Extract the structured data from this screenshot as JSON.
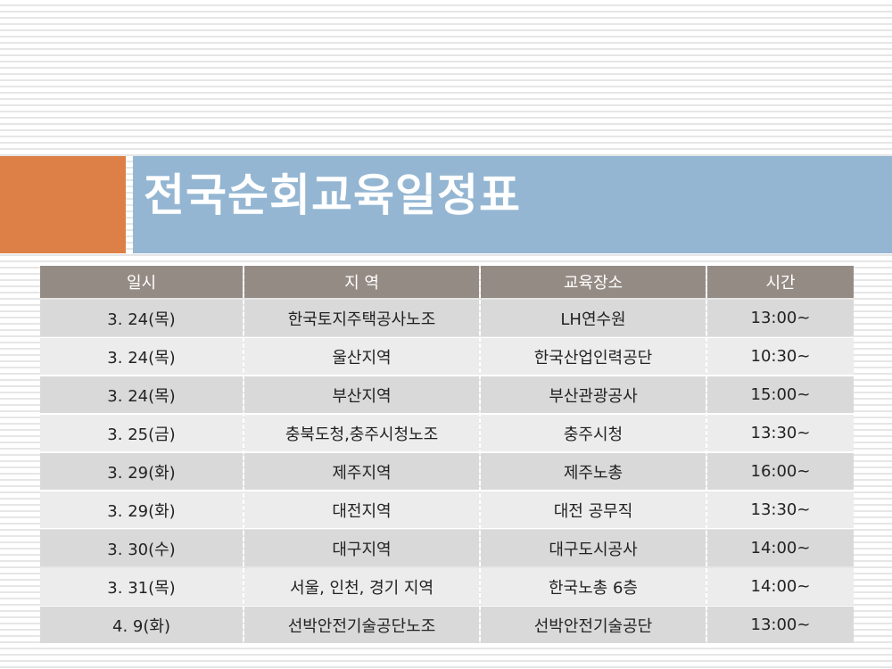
{
  "slide": {
    "title": "전국순회교육일정표",
    "colors": {
      "accent": "#dd8047",
      "title_band": "#94b6d2",
      "header": "#958b85"
    }
  },
  "table": {
    "headers": [
      "일시",
      "지 역",
      "교육장소",
      "시간"
    ],
    "rows": [
      [
        "3. 24(목)",
        "한국토지주택공사노조",
        "LH연수원",
        "13:00~"
      ],
      [
        "3. 24(목)",
        "울산지역",
        "한국산업인력공단",
        "10:30~"
      ],
      [
        "3. 24(목)",
        "부산지역",
        "부산관광공사",
        "15:00~"
      ],
      [
        "3. 25(금)",
        "충북도청,충주시청노조",
        "충주시청",
        "13:30~"
      ],
      [
        "3. 29(화)",
        "제주지역",
        "제주노총",
        "16:00~"
      ],
      [
        "3. 29(화)",
        "대전지역",
        "대전 공무직",
        "13:30~"
      ],
      [
        "3. 30(수)",
        "대구지역",
        "대구도시공사",
        "14:00~"
      ],
      [
        "3. 31(목)",
        "서울, 인천, 경기 지역",
        "한국노총 6층",
        "14:00~"
      ],
      [
        "4. 9(화)",
        "선박안전기술공단노조",
        "선박안전기술공단",
        "13:00~"
      ]
    ]
  }
}
